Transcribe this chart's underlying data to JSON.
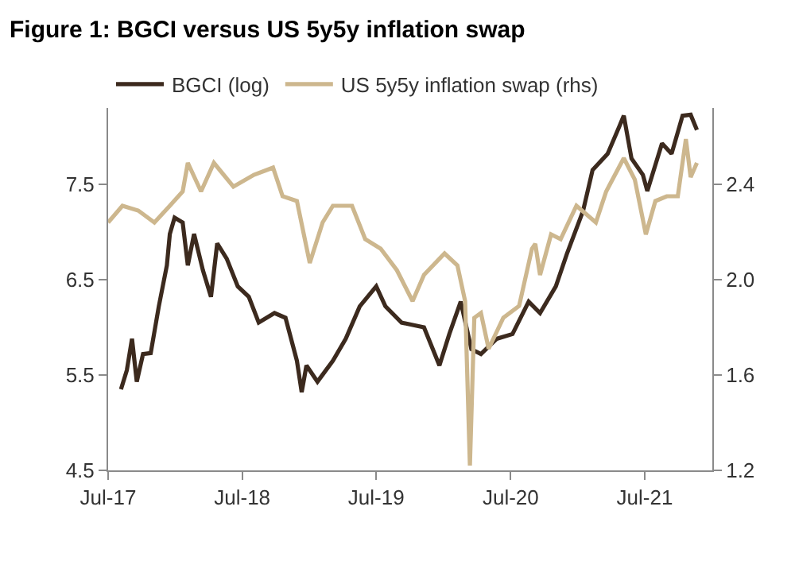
{
  "chart_data": {
    "type": "line",
    "title": "Figure 1: BGCI versus US 5y5y inflation swap",
    "series": [
      {
        "name": "BGCI (log)",
        "color": "#3c2a1e",
        "x": [
          "2017-08-05",
          "2017-08-21",
          "2017-09-04",
          "2017-09-17",
          "2017-10-04",
          "2017-10-25",
          "2017-11-16",
          "2017-12-08",
          "2017-12-16",
          "2017-12-29",
          "2018-01-20",
          "2018-02-03",
          "2018-02-20",
          "2018-03-16",
          "2018-04-07",
          "2018-04-24",
          "2018-05-20",
          "2018-06-19",
          "2018-07-19",
          "2018-08-15",
          "2018-09-27",
          "2018-10-27",
          "2018-11-27",
          "2018-12-10",
          "2018-12-23",
          "2019-01-22",
          "2019-03-05",
          "2019-04-09",
          "2019-05-17",
          "2019-07-01",
          "2019-07-26",
          "2019-09-08",
          "2019-11-08",
          "2019-12-20",
          "2020-01-16",
          "2020-02-16",
          "2020-03-16",
          "2020-04-11",
          "2020-05-24",
          "2020-07-06",
          "2020-08-19",
          "2020-09-19",
          "2020-11-01",
          "2020-12-01",
          "2021-01-14",
          "2021-02-09",
          "2021-03-22",
          "2021-04-22",
          "2021-05-05",
          "2021-05-26",
          "2021-06-26",
          "2021-07-08",
          "2021-08-17",
          "2021-09-12",
          "2021-10-12",
          "2021-11-03",
          "2021-11-20"
        ],
        "values": [
          5.35,
          5.55,
          5.88,
          5.43,
          5.72,
          5.73,
          6.22,
          6.65,
          6.98,
          7.15,
          7.1,
          6.65,
          6.98,
          6.6,
          6.32,
          6.88,
          6.72,
          6.43,
          6.32,
          6.05,
          6.15,
          6.1,
          5.65,
          5.32,
          5.6,
          5.43,
          5.65,
          5.88,
          6.22,
          6.43,
          6.22,
          6.05,
          6.0,
          5.6,
          5.93,
          6.27,
          5.77,
          5.72,
          5.88,
          5.93,
          6.27,
          6.15,
          6.43,
          6.77,
          7.22,
          7.65,
          7.82,
          8.1,
          8.22,
          7.77,
          7.6,
          7.43,
          7.93,
          7.82,
          8.22,
          8.23,
          8.07
        ]
      },
      {
        "name": "US 5y5y inflation swap (rhs)",
        "color": "#cdb78e",
        "axis": "y2",
        "x": [
          "2017-07-01",
          "2017-08-09",
          "2017-09-21",
          "2017-11-04",
          "2017-12-16",
          "2018-01-20",
          "2018-02-03",
          "2018-03-11",
          "2018-04-15",
          "2018-06-07",
          "2018-08-02",
          "2018-09-23",
          "2018-10-19",
          "2018-11-27",
          "2019-01-01",
          "2019-02-05",
          "2019-03-05",
          "2019-04-26",
          "2019-06-01",
          "2019-07-13",
          "2019-08-26",
          "2019-10-08",
          "2019-11-08",
          "2020-01-03",
          "2020-02-07",
          "2020-02-28",
          "2020-03-12",
          "2020-03-24",
          "2020-04-11",
          "2020-05-02",
          "2020-06-11",
          "2020-07-24",
          "2020-08-28",
          "2020-09-06",
          "2020-09-19",
          "2020-10-19",
          "2020-11-14",
          "2020-12-27",
          "2021-02-18",
          "2021-03-18",
          "2021-05-05",
          "2021-06-04",
          "2021-07-04",
          "2021-07-30",
          "2021-08-30",
          "2021-09-29",
          "2021-10-21",
          "2021-11-03",
          "2021-11-20"
        ],
        "values": [
          2.24,
          2.31,
          2.29,
          2.24,
          2.31,
          2.37,
          2.49,
          2.37,
          2.49,
          2.39,
          2.44,
          2.47,
          2.35,
          2.33,
          2.07,
          2.24,
          2.31,
          2.31,
          2.17,
          2.13,
          2.04,
          1.91,
          2.02,
          2.11,
          2.06,
          1.91,
          1.22,
          1.84,
          1.86,
          1.71,
          1.84,
          1.89,
          2.13,
          2.15,
          2.02,
          2.19,
          2.17,
          2.31,
          2.24,
          2.37,
          2.51,
          2.42,
          2.19,
          2.33,
          2.35,
          2.35,
          2.59,
          2.43,
          2.49
        ]
      }
    ],
    "xlim": [
      "2017-07-01",
      "2022-01-01"
    ],
    "xticks": [
      {
        "value": "2017-07-01",
        "label": "Jul-17"
      },
      {
        "value": "2018-07-01",
        "label": "Jul-18"
      },
      {
        "value": "2019-07-01",
        "label": "Jul-19"
      },
      {
        "value": "2020-07-01",
        "label": "Jul-20"
      },
      {
        "value": "2021-07-01",
        "label": "Jul-21"
      }
    ],
    "ylim": [
      4.5,
      8.3
    ],
    "yticks": [
      4.5,
      5.5,
      6.5,
      7.5
    ],
    "y2lim": [
      1.2,
      2.72
    ],
    "y2ticks": [
      1.2,
      1.6,
      {
        "value": 2,
        "label": "2.0"
      },
      2.4
    ],
    "legend": "top left",
    "marker": "none",
    "line_style": "solid"
  }
}
